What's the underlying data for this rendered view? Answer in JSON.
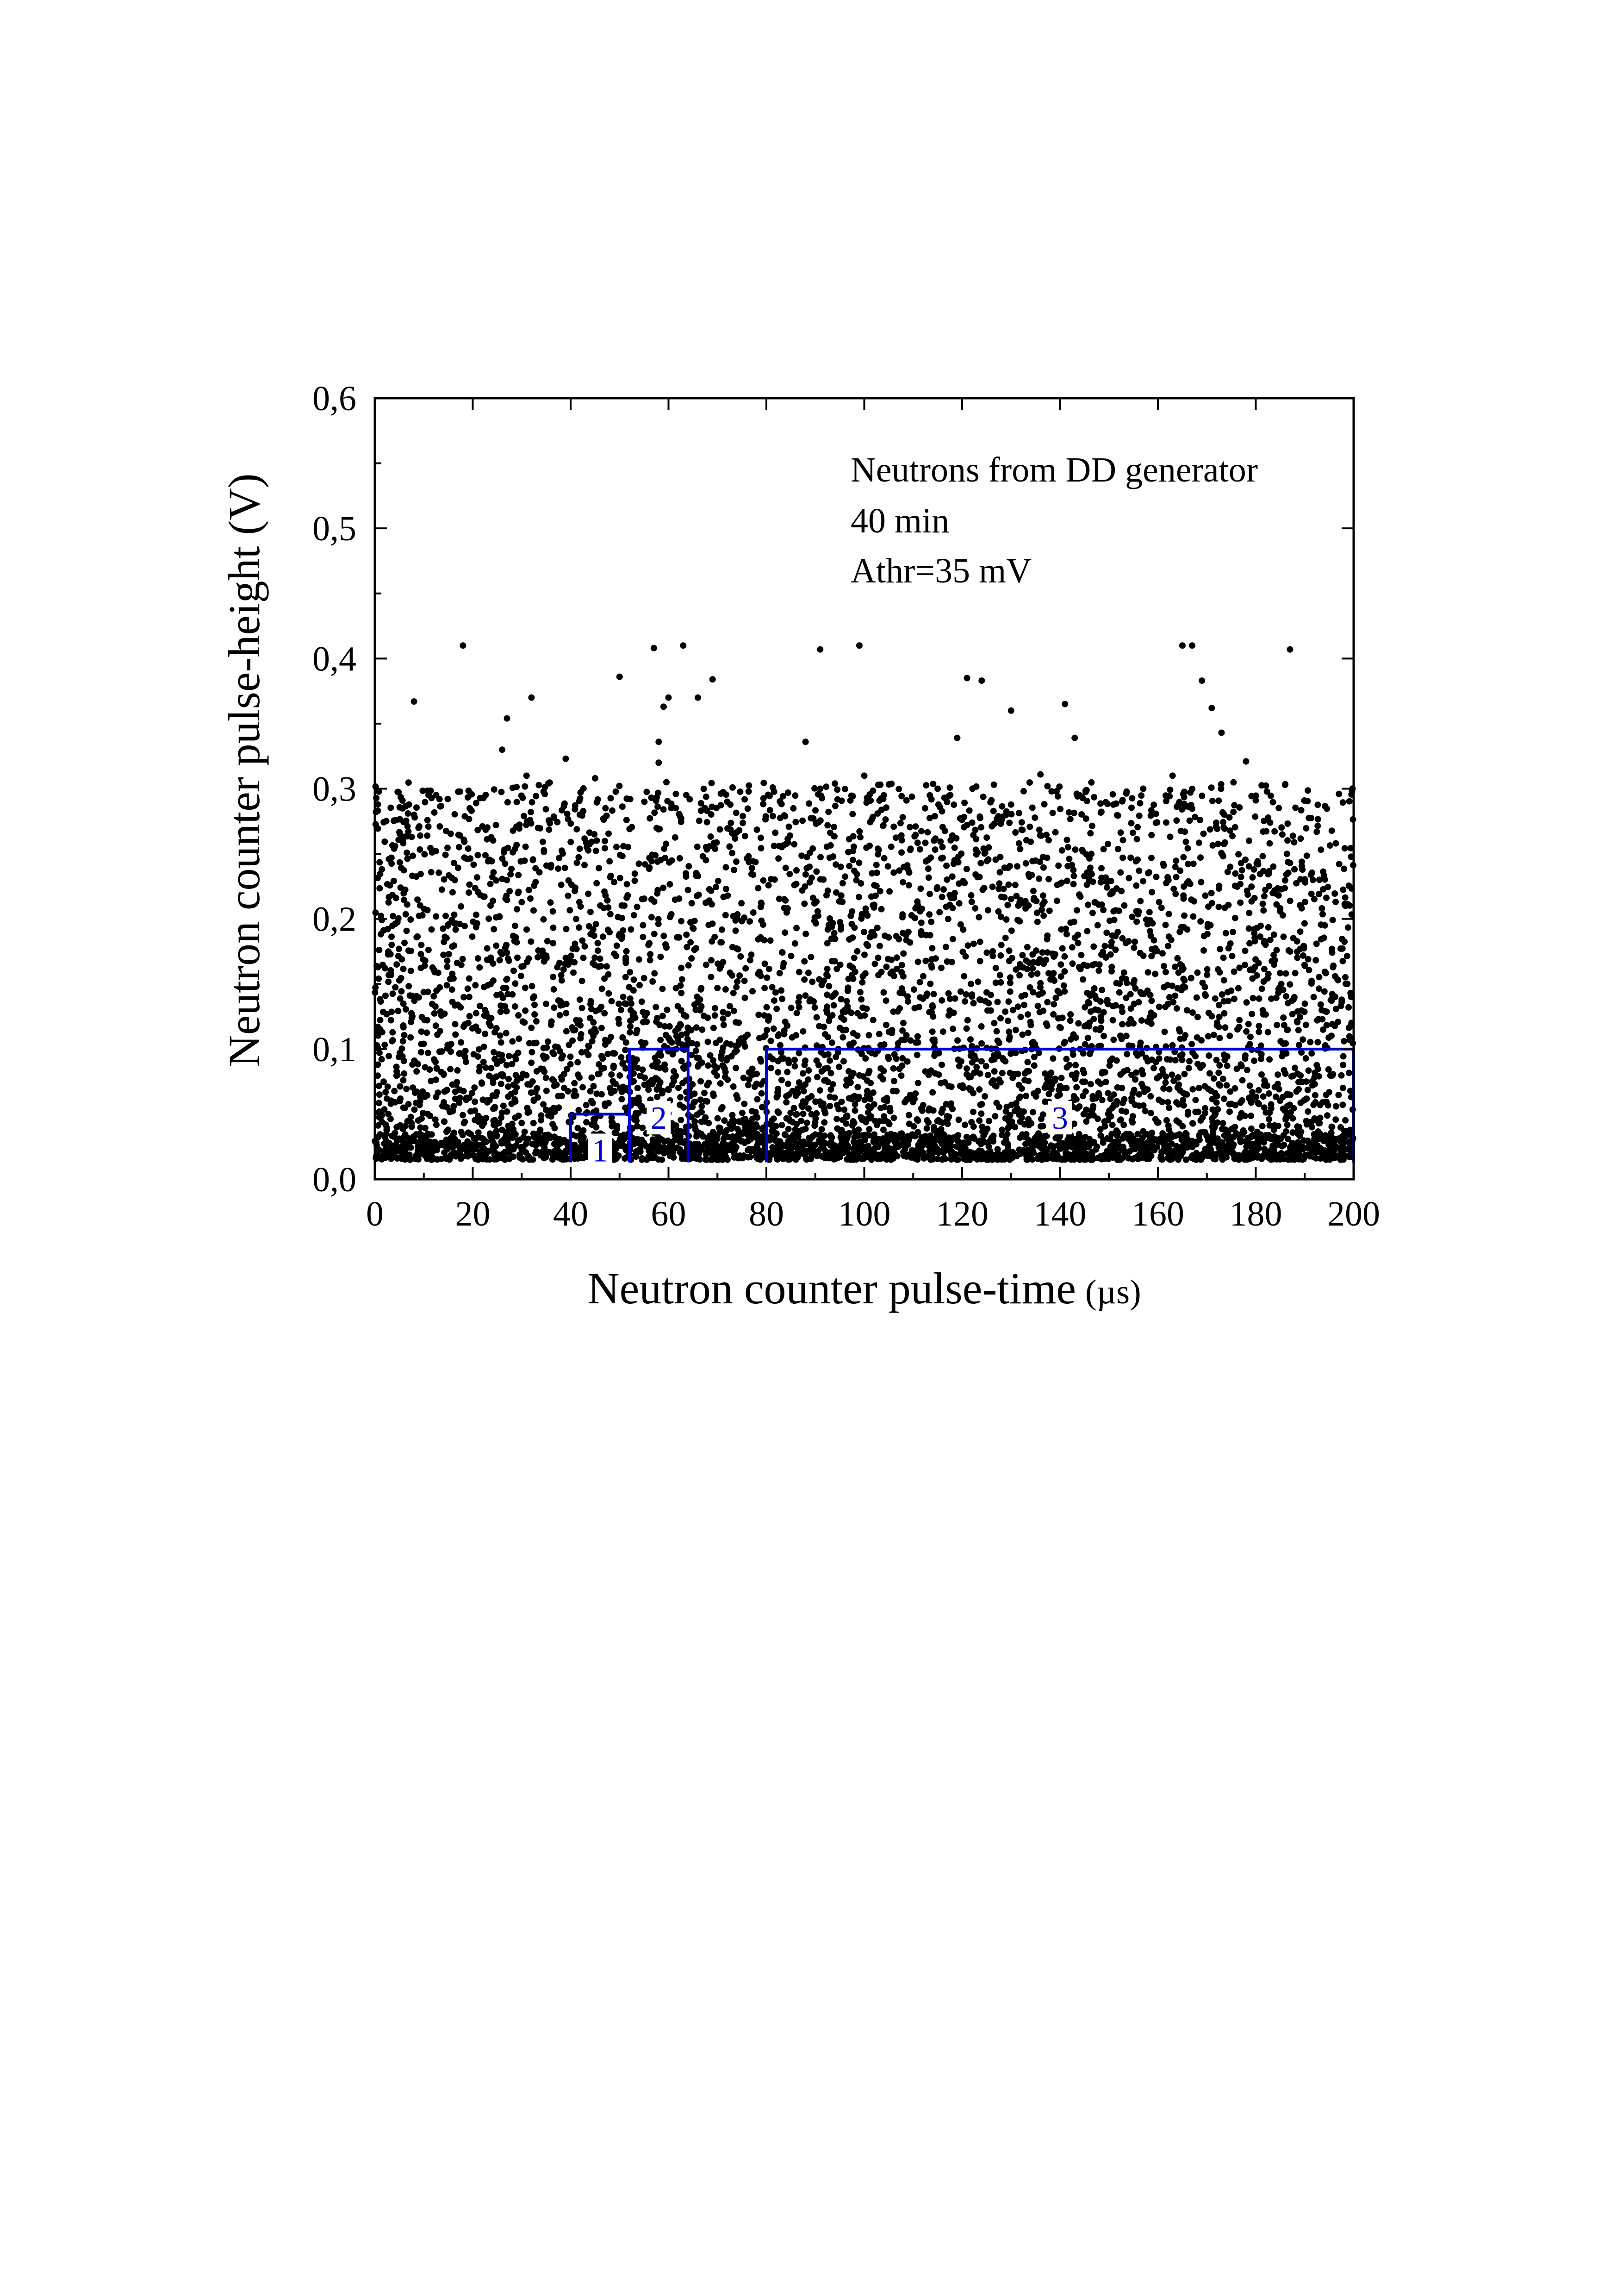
{
  "chart_data": {
    "type": "scatter",
    "title": "",
    "xlabel": "Neutron counter pulse-time",
    "xlabel_unit": "(µs)",
    "ylabel": "Neutron counter pulse-height (V)",
    "xlim": [
      0,
      200
    ],
    "ylim": [
      0,
      0.6
    ],
    "x_ticks": [
      0,
      20,
      40,
      60,
      80,
      100,
      120,
      140,
      160,
      180,
      200
    ],
    "x_tick_labels": [
      "0",
      "20",
      "40",
      "60",
      "80",
      "100",
      "120",
      "140",
      "160",
      "180",
      "200"
    ],
    "y_ticks": [
      0,
      0.1,
      0.2,
      0.3,
      0.4,
      0.5,
      0.6
    ],
    "y_tick_labels": [
      "0,0",
      "0,1",
      "0,2",
      "0,3",
      "0,4",
      "0,5",
      "0,6"
    ],
    "grid": false,
    "annotations": [
      "Neutrons from DD generator",
      "40 min",
      "Athr=35 mV"
    ],
    "marker_color": "#000000",
    "region_color": "#0000cc",
    "regions": [
      {
        "label": "1",
        "x": [
          40,
          52
        ],
        "y": [
          0.013,
          0.05
        ]
      },
      {
        "label": "2",
        "x": [
          52,
          64
        ],
        "y": [
          0.013,
          0.1
        ]
      },
      {
        "label": "3",
        "x": [
          80,
          200
        ],
        "y": [
          0.013,
          0.1
        ]
      }
    ],
    "series": [
      {
        "points": [
          [
            8,
            0.367
          ],
          [
            18,
            0.41
          ],
          [
            32,
            0.37
          ],
          [
            27,
            0.354
          ],
          [
            50,
            0.386
          ],
          [
            57,
            0.408
          ],
          [
            60,
            0.37
          ],
          [
            63,
            0.41
          ],
          [
            69,
            0.384
          ],
          [
            91,
            0.407
          ],
          [
            99,
            0.41
          ],
          [
            121,
            0.385
          ],
          [
            124,
            0.383
          ],
          [
            130,
            0.36
          ],
          [
            141,
            0.365
          ],
          [
            165,
            0.41
          ],
          [
            167,
            0.41
          ],
          [
            169,
            0.383
          ],
          [
            171,
            0.362
          ],
          [
            187,
            0.407
          ],
          [
            173,
            0.343
          ],
          [
            59,
            0.363
          ],
          [
            66,
            0.37
          ],
          [
            58,
            0.336
          ],
          [
            39,
            0.323
          ],
          [
            88,
            0.336
          ],
          [
            119,
            0.339
          ],
          [
            143,
            0.339
          ],
          [
            178,
            0.321
          ],
          [
            136,
            0.311
          ],
          [
            31,
            0.31
          ],
          [
            100,
            0.31
          ],
          [
            163,
            0.31
          ],
          [
            58,
            0.32
          ],
          [
            26,
            0.33
          ],
          [
            45,
            0.308
          ],
          [
            72,
            0.29
          ],
          [
            91,
            0.3
          ],
          [
            94,
            0.304
          ],
          [
            104,
            0.295
          ],
          [
            115,
            0.3
          ],
          [
            157,
            0.3
          ],
          [
            186,
            0.303
          ],
          [
            197,
            0.296
          ]
        ]
      }
    ]
  }
}
